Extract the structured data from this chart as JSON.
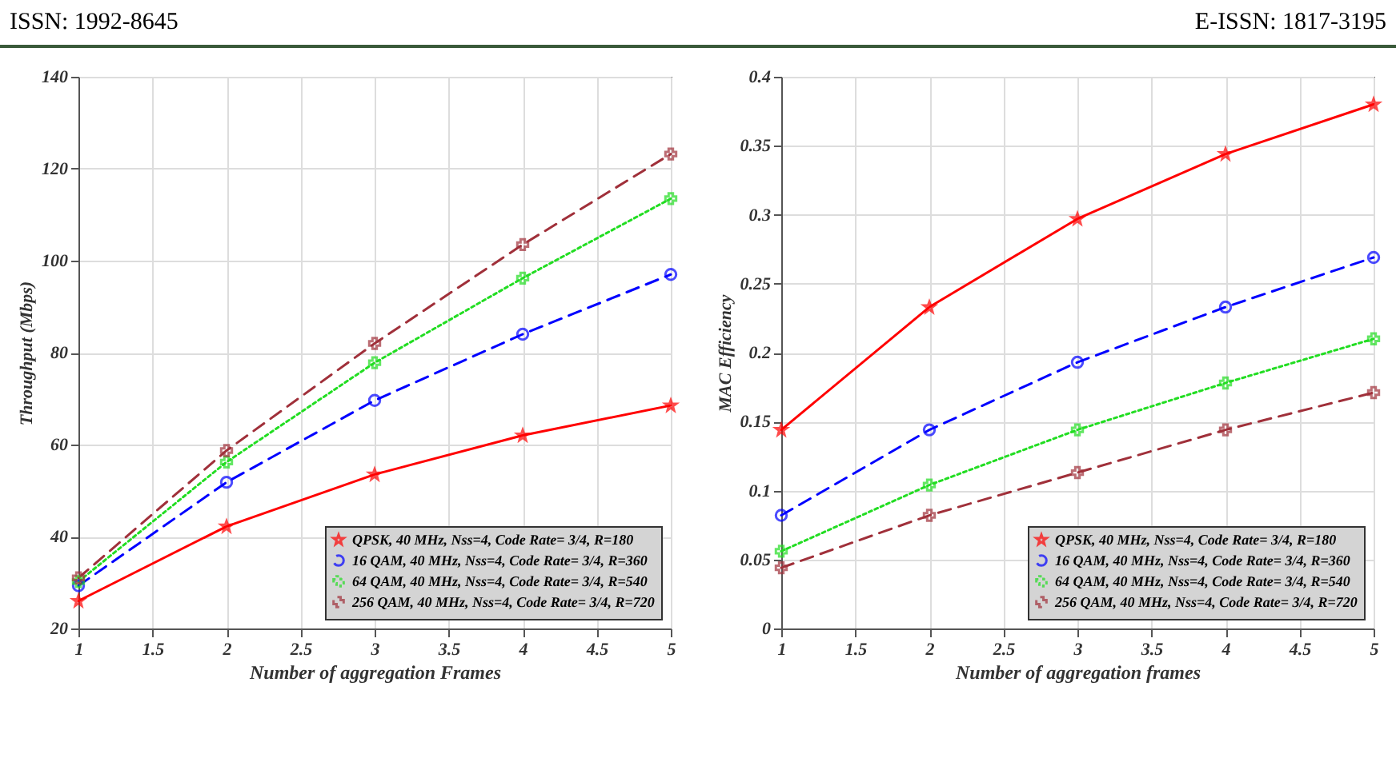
{
  "chart_data": [
    {
      "type": "line",
      "xlabel": "Number of aggregation Frames",
      "ylabel": "Throughput (Mbps)",
      "annotations": [
        "ISSN: 1992-8645"
      ],
      "x": [
        1,
        2,
        3,
        4,
        5
      ],
      "xlim": [
        1,
        5
      ],
      "xticks": [
        1,
        1.5,
        2,
        2.5,
        3,
        3.5,
        4,
        4.5,
        5
      ],
      "ylim": [
        20,
        140
      ],
      "yticks": [
        20,
        40,
        60,
        80,
        100,
        120,
        140
      ],
      "grid": true,
      "legend": "bottom right",
      "series": [
        {
          "name": "QPSK, 40 MHz, Nss=4, Code Rate= 3/4, R=180",
          "color": "#ff0000",
          "marker": "star",
          "line_style": "solid",
          "values": [
            26,
            42.2,
            53.5,
            62,
            68.5
          ]
        },
        {
          "name": "16 QAM, 40 MHz, Nss=4, Code Rate= 3/4, R=360",
          "color": "#0000ff",
          "marker": "circle",
          "line_style": "dashed",
          "values": [
            29.3,
            51.8,
            69.6,
            84,
            97
          ]
        },
        {
          "name": "64 QAM, 40 MHz, Nss=4, Code Rate= 3/4, R=540",
          "color": "#22dd22",
          "marker": "cross",
          "line_style": "dotted",
          "values": [
            30.2,
            56.2,
            77.8,
            96.2,
            113.5
          ]
        },
        {
          "name": "256 QAM, 40 MHz, Nss=4, Code Rate= 3/4, R=720",
          "color": "#a0303a",
          "marker": "cross",
          "line_style": "dashed",
          "values": [
            31,
            58.7,
            82,
            103.5,
            123.2
          ]
        }
      ]
    },
    {
      "type": "line",
      "xlabel": "Number of aggregation frames",
      "ylabel": "MAC Efficiency",
      "annotations": [
        "E-ISSN: 1817-3195"
      ],
      "x": [
        1,
        2,
        3,
        4,
        5
      ],
      "xlim": [
        1,
        5
      ],
      "xticks": [
        1,
        1.5,
        2,
        2.5,
        3,
        3.5,
        4,
        4.5,
        5
      ],
      "ylim": [
        0,
        0.4
      ],
      "yticks": [
        0,
        0.05,
        0.1,
        0.15,
        0.2,
        0.25,
        0.3,
        0.35,
        0.4
      ],
      "grid": true,
      "legend": "bottom right",
      "series": [
        {
          "name": "QPSK, 40 MHz, Nss=4, Code Rate= 3/4, R=180",
          "color": "#ff0000",
          "marker": "star",
          "line_style": "solid",
          "values": [
            0.144,
            0.233,
            0.297,
            0.344,
            0.38
          ]
        },
        {
          "name": "16 QAM, 40 MHz, Nss=4, Code Rate= 3/4, R=360",
          "color": "#0000ff",
          "marker": "circle",
          "line_style": "dashed",
          "values": [
            0.082,
            0.144,
            0.193,
            0.233,
            0.269
          ]
        },
        {
          "name": "64 QAM, 40 MHz, Nss=4, Code Rate= 3/4, R=540",
          "color": "#22dd22",
          "marker": "cross",
          "line_style": "dotted",
          "values": [
            0.056,
            0.104,
            0.144,
            0.178,
            0.21
          ]
        },
        {
          "name": "256 QAM, 40 MHz, Nss=4, Code Rate= 3/4, R=720",
          "color": "#a0303a",
          "marker": "cross",
          "line_style": "dashed",
          "values": [
            0.044,
            0.082,
            0.113,
            0.144,
            0.171
          ]
        }
      ]
    }
  ]
}
